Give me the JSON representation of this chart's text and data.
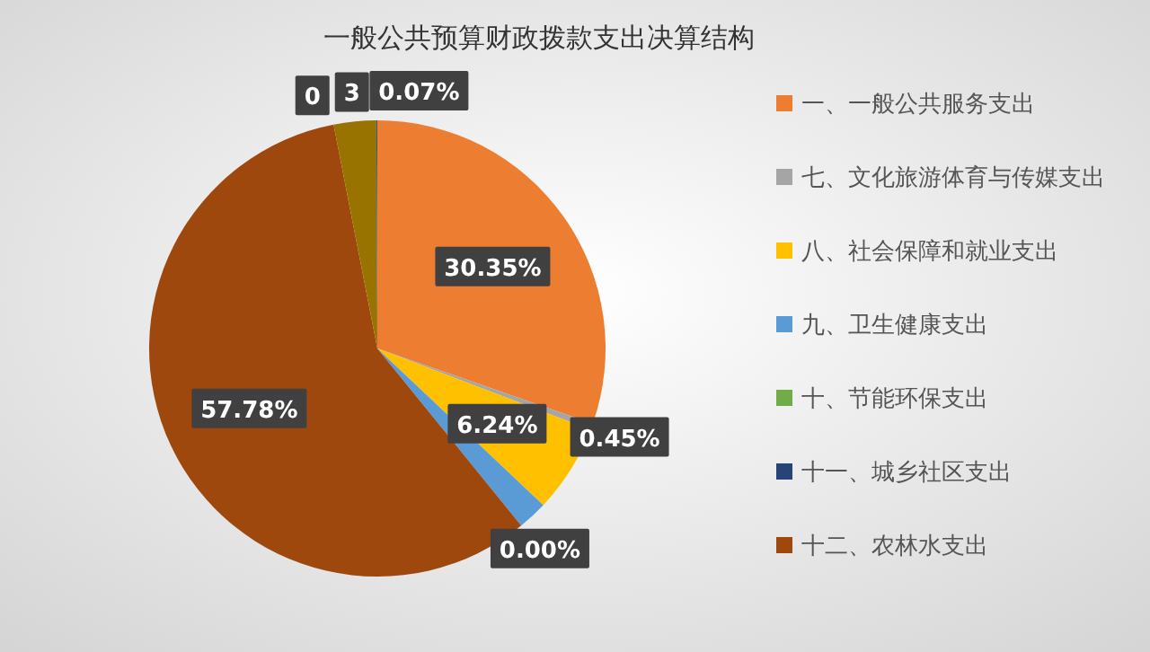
{
  "chart_data": {
    "type": "pie",
    "title": "一般公共预算财政拨款支出决算结构",
    "categories": [
      "一、一般公共服务支出",
      "七、文化旅游体育与传媒支出",
      "八、社会保障和就业支出",
      "九、卫生健康支出",
      "十、节能环保支出",
      "十一、城乡社区支出",
      "十二、农林水支出",
      null,
      null,
      null
    ],
    "values": [
      30.35,
      0.45,
      6.24,
      2.1,
      0,
      0,
      57.78,
      0,
      3,
      0.07
    ],
    "colors": [
      "#ed7d31",
      "#a5a5a5",
      "#ffc000",
      "#5b9bd5",
      "#70ad47",
      "#264478",
      "#9e480e",
      "#636363",
      "#997300",
      "#255e91"
    ],
    "value_labels": [
      "30.35%",
      "0.45%",
      "6.24%",
      null,
      "0.00%",
      null,
      "57.78%",
      "0",
      "3",
      "0.07%"
    ],
    "legend": "right"
  }
}
